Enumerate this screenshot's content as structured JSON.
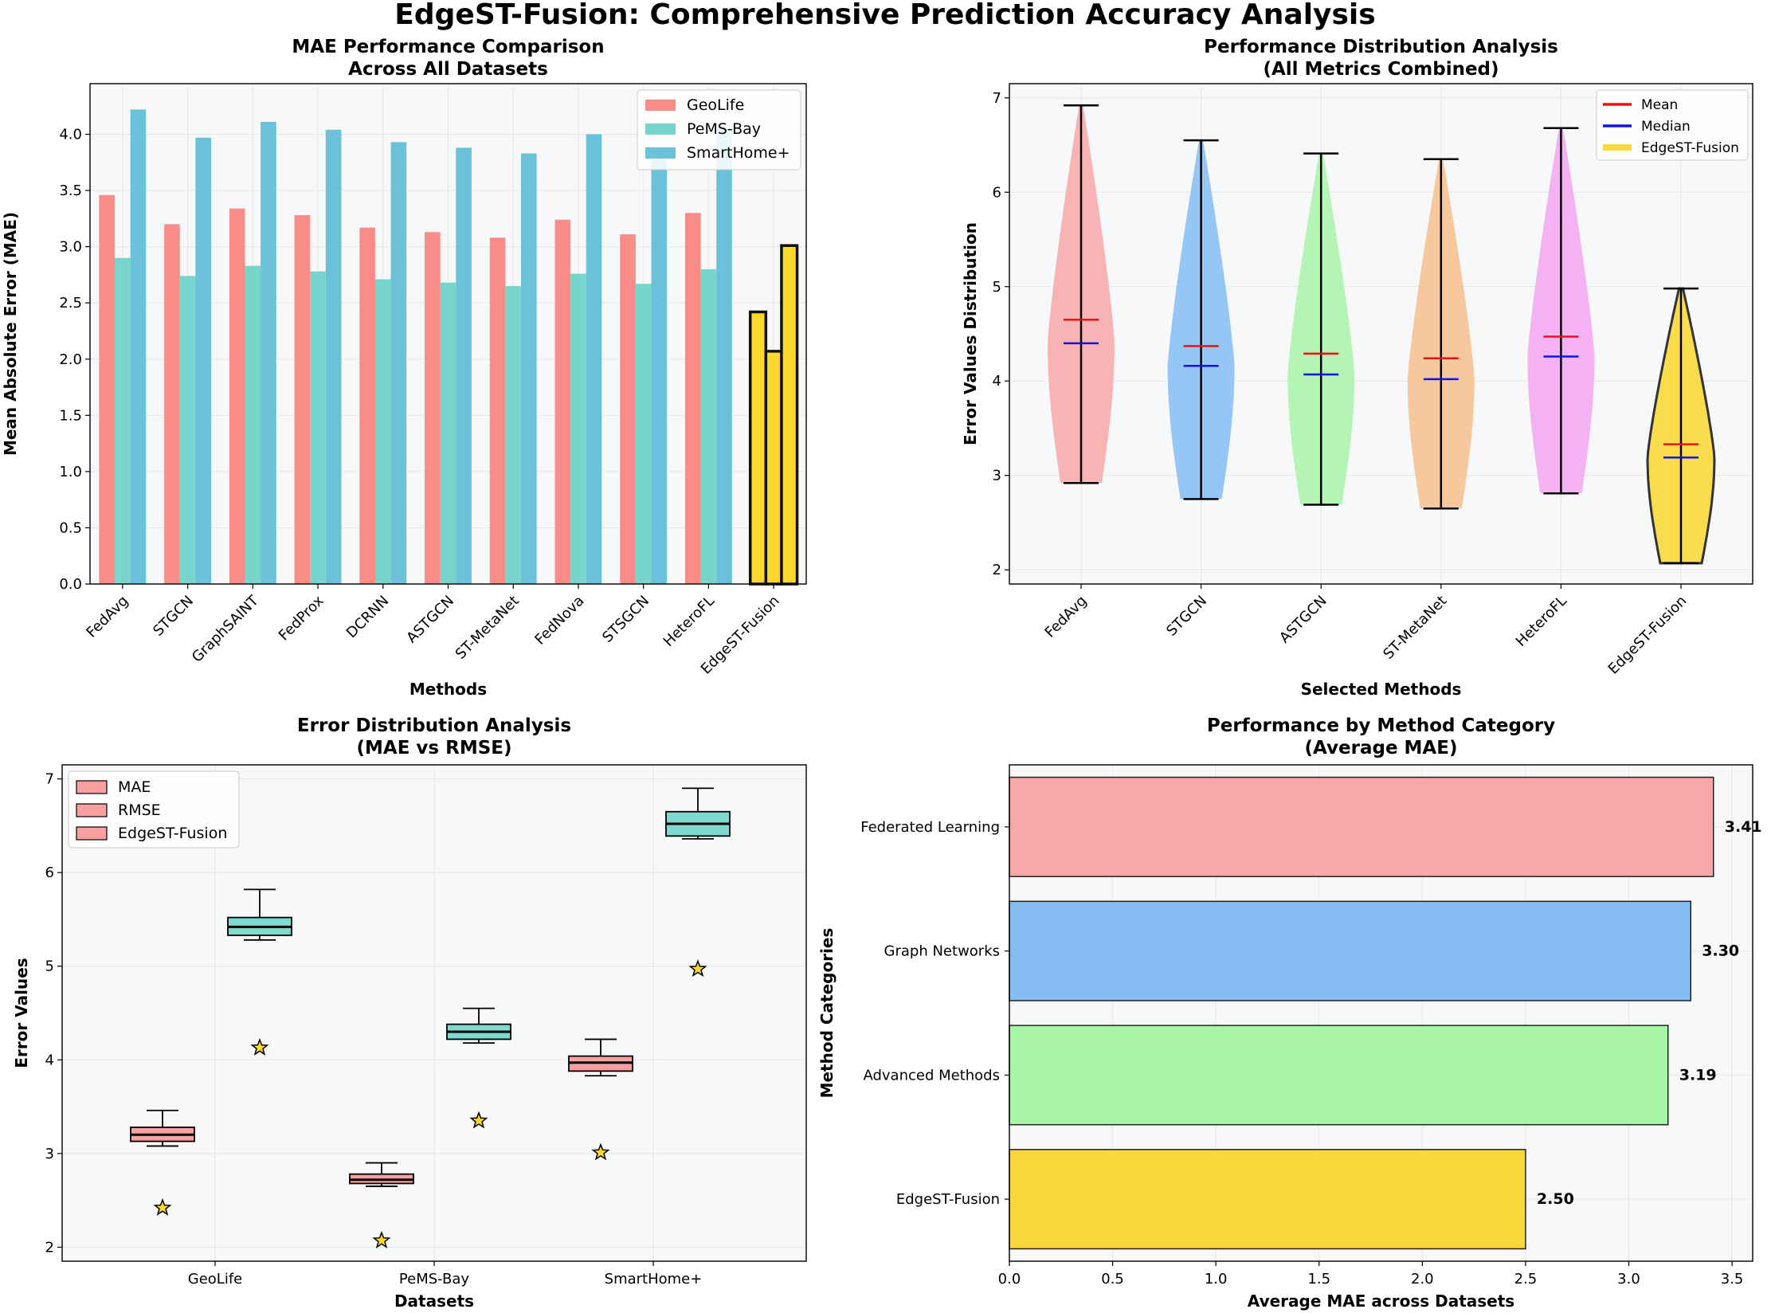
{
  "figure_title": "EdgeST-Fusion: Comprehensive Prediction Accuracy Analysis",
  "chart_data": [
    {
      "id": "mae_bar",
      "type": "bar",
      "title_lines": [
        "MAE Performance Comparison",
        "Across All Datasets"
      ],
      "xlabel": "Methods",
      "ylabel": "Mean Absolute Error (MAE)",
      "ylim": [
        0,
        4.45
      ],
      "yticks": [
        "0.0",
        "0.5",
        "1.0",
        "1.5",
        "2.0",
        "2.5",
        "3.0",
        "3.5",
        "4.0"
      ],
      "categories": [
        "FedAvg",
        "STGCN",
        "GraphSAINT",
        "FedProx",
        "DCRNN",
        "ASTGCN",
        "ST-MetaNet",
        "FedNova",
        "STSGCN",
        "HeteroFL",
        "EdgeST-Fusion"
      ],
      "series": [
        {
          "name": "GeoLife",
          "color": "#f98b88",
          "values": [
            3.46,
            3.2,
            3.34,
            3.28,
            3.17,
            3.13,
            3.08,
            3.24,
            3.11,
            3.3,
            2.42
          ]
        },
        {
          "name": "PeMS-Bay",
          "color": "#78d5cc",
          "values": [
            2.9,
            2.74,
            2.83,
            2.78,
            2.71,
            2.68,
            2.65,
            2.76,
            2.67,
            2.8,
            2.07
          ]
        },
        {
          "name": "SmartHome+",
          "color": "#6cc1da",
          "values": [
            4.22,
            3.97,
            4.11,
            4.04,
            3.93,
            3.88,
            3.83,
            4.0,
            3.86,
            4.05,
            3.01
          ]
        }
      ],
      "highlight": {
        "category": "EdgeST-Fusion",
        "color": "#fbd82b"
      },
      "legend_position": "upper right"
    },
    {
      "id": "violin",
      "type": "violin",
      "title_lines": [
        "Performance Distribution Analysis",
        "(All Metrics Combined)"
      ],
      "xlabel": "Selected Methods",
      "ylabel": "Error Values Distribution",
      "ylim": [
        1.85,
        7.15
      ],
      "yticks": [
        "2",
        "3",
        "4",
        "5",
        "6",
        "7"
      ],
      "categories": [
        "FedAvg",
        "STGCN",
        "ASTGCN",
        "ST-MetaNet",
        "HeteroFL",
        "EdgeST-Fusion"
      ],
      "colors": [
        "#f8a8a8",
        "#85bdf3",
        "#a8f5a8",
        "#f7c08c",
        "#f3a6f3",
        "#fbd83a"
      ],
      "min": [
        2.92,
        2.75,
        2.69,
        2.65,
        2.81,
        2.07
      ],
      "max": [
        6.92,
        6.55,
        6.41,
        6.35,
        6.68,
        4.98
      ],
      "mean": [
        4.65,
        4.37,
        4.29,
        4.24,
        4.47,
        3.33
      ],
      "median": [
        4.4,
        4.16,
        4.07,
        4.02,
        4.26,
        3.19
      ],
      "legend": [
        {
          "label": "Mean",
          "color": "#ee1111"
        },
        {
          "label": "Median",
          "color": "#1111ee"
        },
        {
          "label": "EdgeST-Fusion",
          "color": "#fbd83a"
        }
      ],
      "legend_position": "upper right"
    },
    {
      "id": "boxplot",
      "type": "box",
      "title_lines": [
        "Error Distribution Analysis",
        "(MAE vs RMSE)"
      ],
      "xlabel": "Datasets",
      "ylabel": "Error Values",
      "ylim": [
        1.85,
        7.15
      ],
      "yticks": [
        "2",
        "3",
        "4",
        "5",
        "6",
        "7"
      ],
      "categories": [
        "GeoLife",
        "PeMS-Bay",
        "SmartHome+"
      ],
      "series": [
        {
          "name": "MAE",
          "color": "#f8a0a0",
          "boxes": [
            {
              "min": 3.08,
              "q1": 3.13,
              "median": 3.2,
              "q3": 3.28,
              "max": 3.46
            },
            {
              "min": 2.65,
              "q1": 2.68,
              "median": 2.72,
              "q3": 2.78,
              "max": 2.9
            },
            {
              "min": 3.83,
              "q1": 3.88,
              "median": 3.97,
              "q3": 4.04,
              "max": 4.22
            }
          ]
        },
        {
          "name": "RMSE",
          "color": "#7fd9cf",
          "boxes": [
            {
              "min": 5.28,
              "q1": 5.33,
              "median": 5.42,
              "q3": 5.52,
              "max": 5.82
            },
            {
              "min": 4.18,
              "q1": 4.22,
              "median": 4.3,
              "q3": 4.38,
              "max": 4.55
            },
            {
              "min": 6.36,
              "q1": 6.39,
              "median": 6.52,
              "q3": 6.65,
              "max": 6.9
            }
          ]
        }
      ],
      "edgest_fusion_points": {
        "name": "EdgeST-Fusion",
        "mae": [
          2.42,
          2.07,
          3.01
        ],
        "rmse": [
          4.13,
          3.35,
          4.97
        ]
      },
      "legend": [
        "MAE",
        "RMSE",
        "EdgeST-Fusion"
      ],
      "legend_position": "upper left"
    },
    {
      "id": "category",
      "type": "barh",
      "title_lines": [
        "Performance by Method Category",
        "(Average MAE)"
      ],
      "xlabel": "Average MAE across Datasets",
      "ylabel": "Method Categories",
      "xlim": [
        0,
        3.6
      ],
      "xticks": [
        "0.0",
        "0.5",
        "1.0",
        "1.5",
        "2.0",
        "2.5",
        "3.0",
        "3.5"
      ],
      "categories": [
        "Federated Learning",
        "Graph Networks",
        "Advanced Methods",
        "EdgeST-Fusion"
      ],
      "values": [
        3.41,
        3.3,
        3.19,
        2.5
      ],
      "value_labels": [
        "3.41",
        "3.30",
        "3.19",
        "2.50"
      ],
      "colors": [
        "#f8a8a8",
        "#85bdf3",
        "#a8f5a8",
        "#fbd83a"
      ]
    }
  ]
}
